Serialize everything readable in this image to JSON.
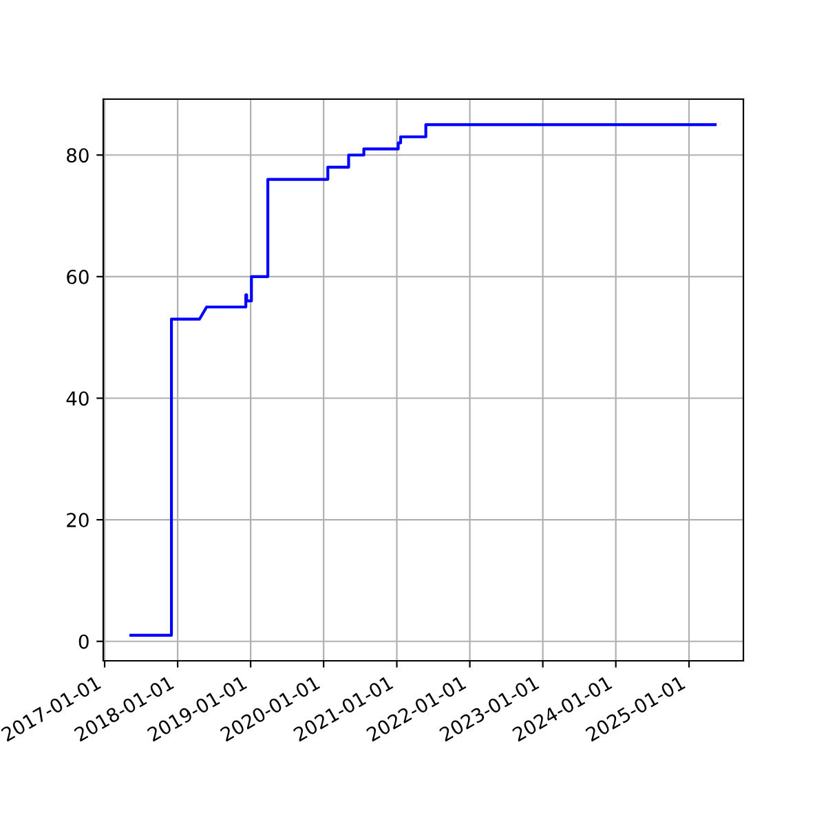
{
  "chart_data": {
    "type": "line",
    "x": [
      "2017-05-12",
      "2017-12-01",
      "2017-12-01",
      "2018-04-20",
      "2018-05-26",
      "2018-12-08",
      "2018-12-08",
      "2018-12-12",
      "2018-12-12",
      "2019-01-05",
      "2019-01-05",
      "2019-03-28",
      "2019-03-28",
      "2020-01-22",
      "2020-01-22",
      "2020-05-05",
      "2020-05-05",
      "2020-07-20",
      "2020-07-20",
      "2021-01-08",
      "2021-01-08",
      "2021-01-20",
      "2021-01-20",
      "2021-05-26",
      "2021-05-26",
      "2025-05-12"
    ],
    "series": [
      {
        "color": "#0000ff",
        "values": [
          1,
          1,
          53,
          53,
          55,
          55,
          57,
          57,
          56,
          56,
          60,
          60,
          76,
          76,
          78,
          78,
          80,
          80,
          81,
          81,
          82,
          82,
          83,
          83,
          85,
          85
        ]
      }
    ],
    "xlim": [
      "2016-12-25",
      "2025-09-30"
    ],
    "xticks": [
      "2017-01-01",
      "2018-01-01",
      "2019-01-01",
      "2020-01-01",
      "2021-01-01",
      "2022-01-01",
      "2023-01-01",
      "2024-01-01",
      "2025-01-01"
    ],
    "ylim": [
      -3.2,
      89.2
    ],
    "yticks": [
      0,
      20,
      40,
      60,
      80
    ],
    "grid": true,
    "marker": "none",
    "line_style": "solid"
  }
}
